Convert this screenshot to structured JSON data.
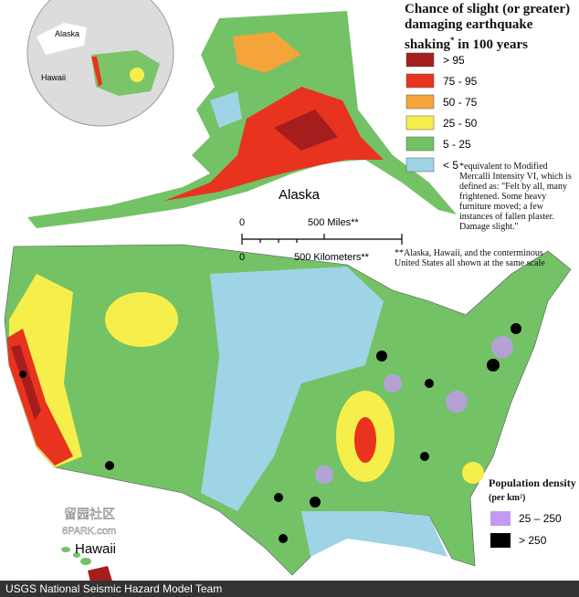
{
  "legend": {
    "title": "Chance of slight (or greater) damaging earthquake shaking",
    "title_mark": "*",
    "title_end": "in 100 years",
    "items": [
      {
        "label": "> 95",
        "color": "#a51d1d"
      },
      {
        "label": "75 - 95",
        "color": "#e8331f"
      },
      {
        "label": "50 - 75",
        "color": "#f5a43a"
      },
      {
        "label": "25 - 50",
        "color": "#f6ef4b"
      },
      {
        "label": "5 - 25",
        "color": "#74c266"
      },
      {
        "label": "< 5",
        "color": "#9fd3e6"
      }
    ]
  },
  "footnote_mercalli": "*equivalent to Modified Mercalli Intensity VI, which is defined as: \"Felt by all, many frightened. Some heavy furniture moved; a few instances of fallen plaster. Damage slight.\"",
  "footnote_scale": "**Alaska, Hawaii, and the conterminous United States all shown at the same scale",
  "labels": {
    "alaska": "Alaska",
    "hawaii": "Hawaii",
    "inset_alaska": "Alaska",
    "inset_hawaii": "Hawaii"
  },
  "scale_bar": {
    "miles_zero": "0",
    "miles": "500 Miles**",
    "km_zero": "0",
    "km": "500 Kilometers**"
  },
  "population": {
    "title": "Population density",
    "unit": "(per km²)",
    "items": [
      {
        "label": "25 – 250",
        "color": "#c39af2"
      },
      {
        "label": "> 250",
        "color": "#000000"
      }
    ]
  },
  "watermark": {
    "cn": "留园社区",
    "site": "6PARK.com"
  },
  "credit": "USGS National Seismic Hazard Model Team"
}
